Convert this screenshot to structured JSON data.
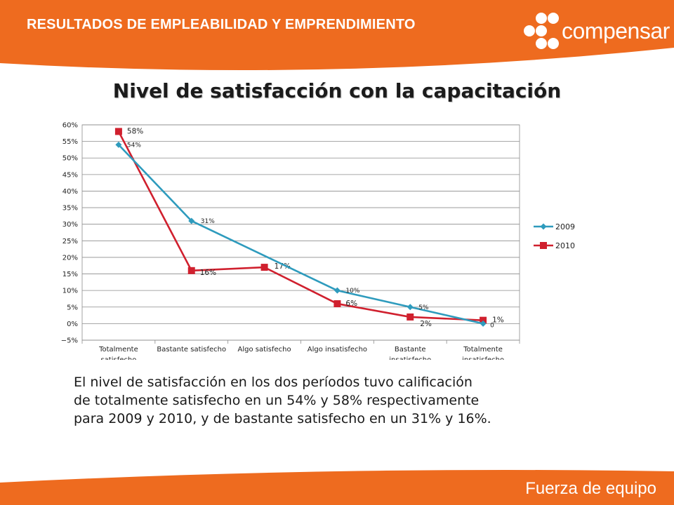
{
  "header": {
    "title": "RESULTADOS DE EMPLEABILIDAD Y EMPRENDIMIENTO"
  },
  "logo": {
    "text": "compensar"
  },
  "slide": {
    "title": "Nivel de satisfacción con la capacitación",
    "caption": [
      "El nivel de satisfacción en los dos períodos tuvo calificación",
      "de totalmente satisfecho en un 54%  y 58% respectivamente",
      "para 2009 y 2010,  y de bastante satisfecho en un 31% y 16%."
    ]
  },
  "footer": {
    "text": "Fuerza de equipo"
  },
  "colors": {
    "brand_orange": "#ee6b1f",
    "series_2009": "#2e9bbd",
    "series_2010": "#d0202e"
  },
  "chart_data": {
    "type": "line",
    "categories": [
      [
        "Totalmente",
        "satisfecho"
      ],
      [
        "Bastante satisfecho"
      ],
      [
        "Algo satisfecho"
      ],
      [
        "Algo insatisfecho"
      ],
      [
        "Bastante",
        "insatisfecho"
      ],
      [
        "Totalmente",
        "insatisfecho"
      ]
    ],
    "series": [
      {
        "name": "2009",
        "values": [
          54,
          31,
          null,
          10,
          5,
          0
        ],
        "labels": [
          "54%",
          "31%",
          "",
          "10%",
          "5%",
          "0"
        ]
      },
      {
        "name": "2010",
        "values": [
          58,
          16,
          17,
          6,
          2,
          1
        ],
        "labels": [
          "58%",
          "16%",
          "17%",
          "6%",
          "2%",
          "1%"
        ]
      }
    ],
    "yticks": [
      "−5%",
      "0%",
      "5%",
      "10%",
      "15%",
      "20%",
      "25%",
      "30%",
      "35%",
      "40%",
      "45%",
      "50%",
      "55%",
      "60%"
    ],
    "ylim": [
      -5,
      60
    ],
    "grid": true,
    "legend": "right"
  }
}
